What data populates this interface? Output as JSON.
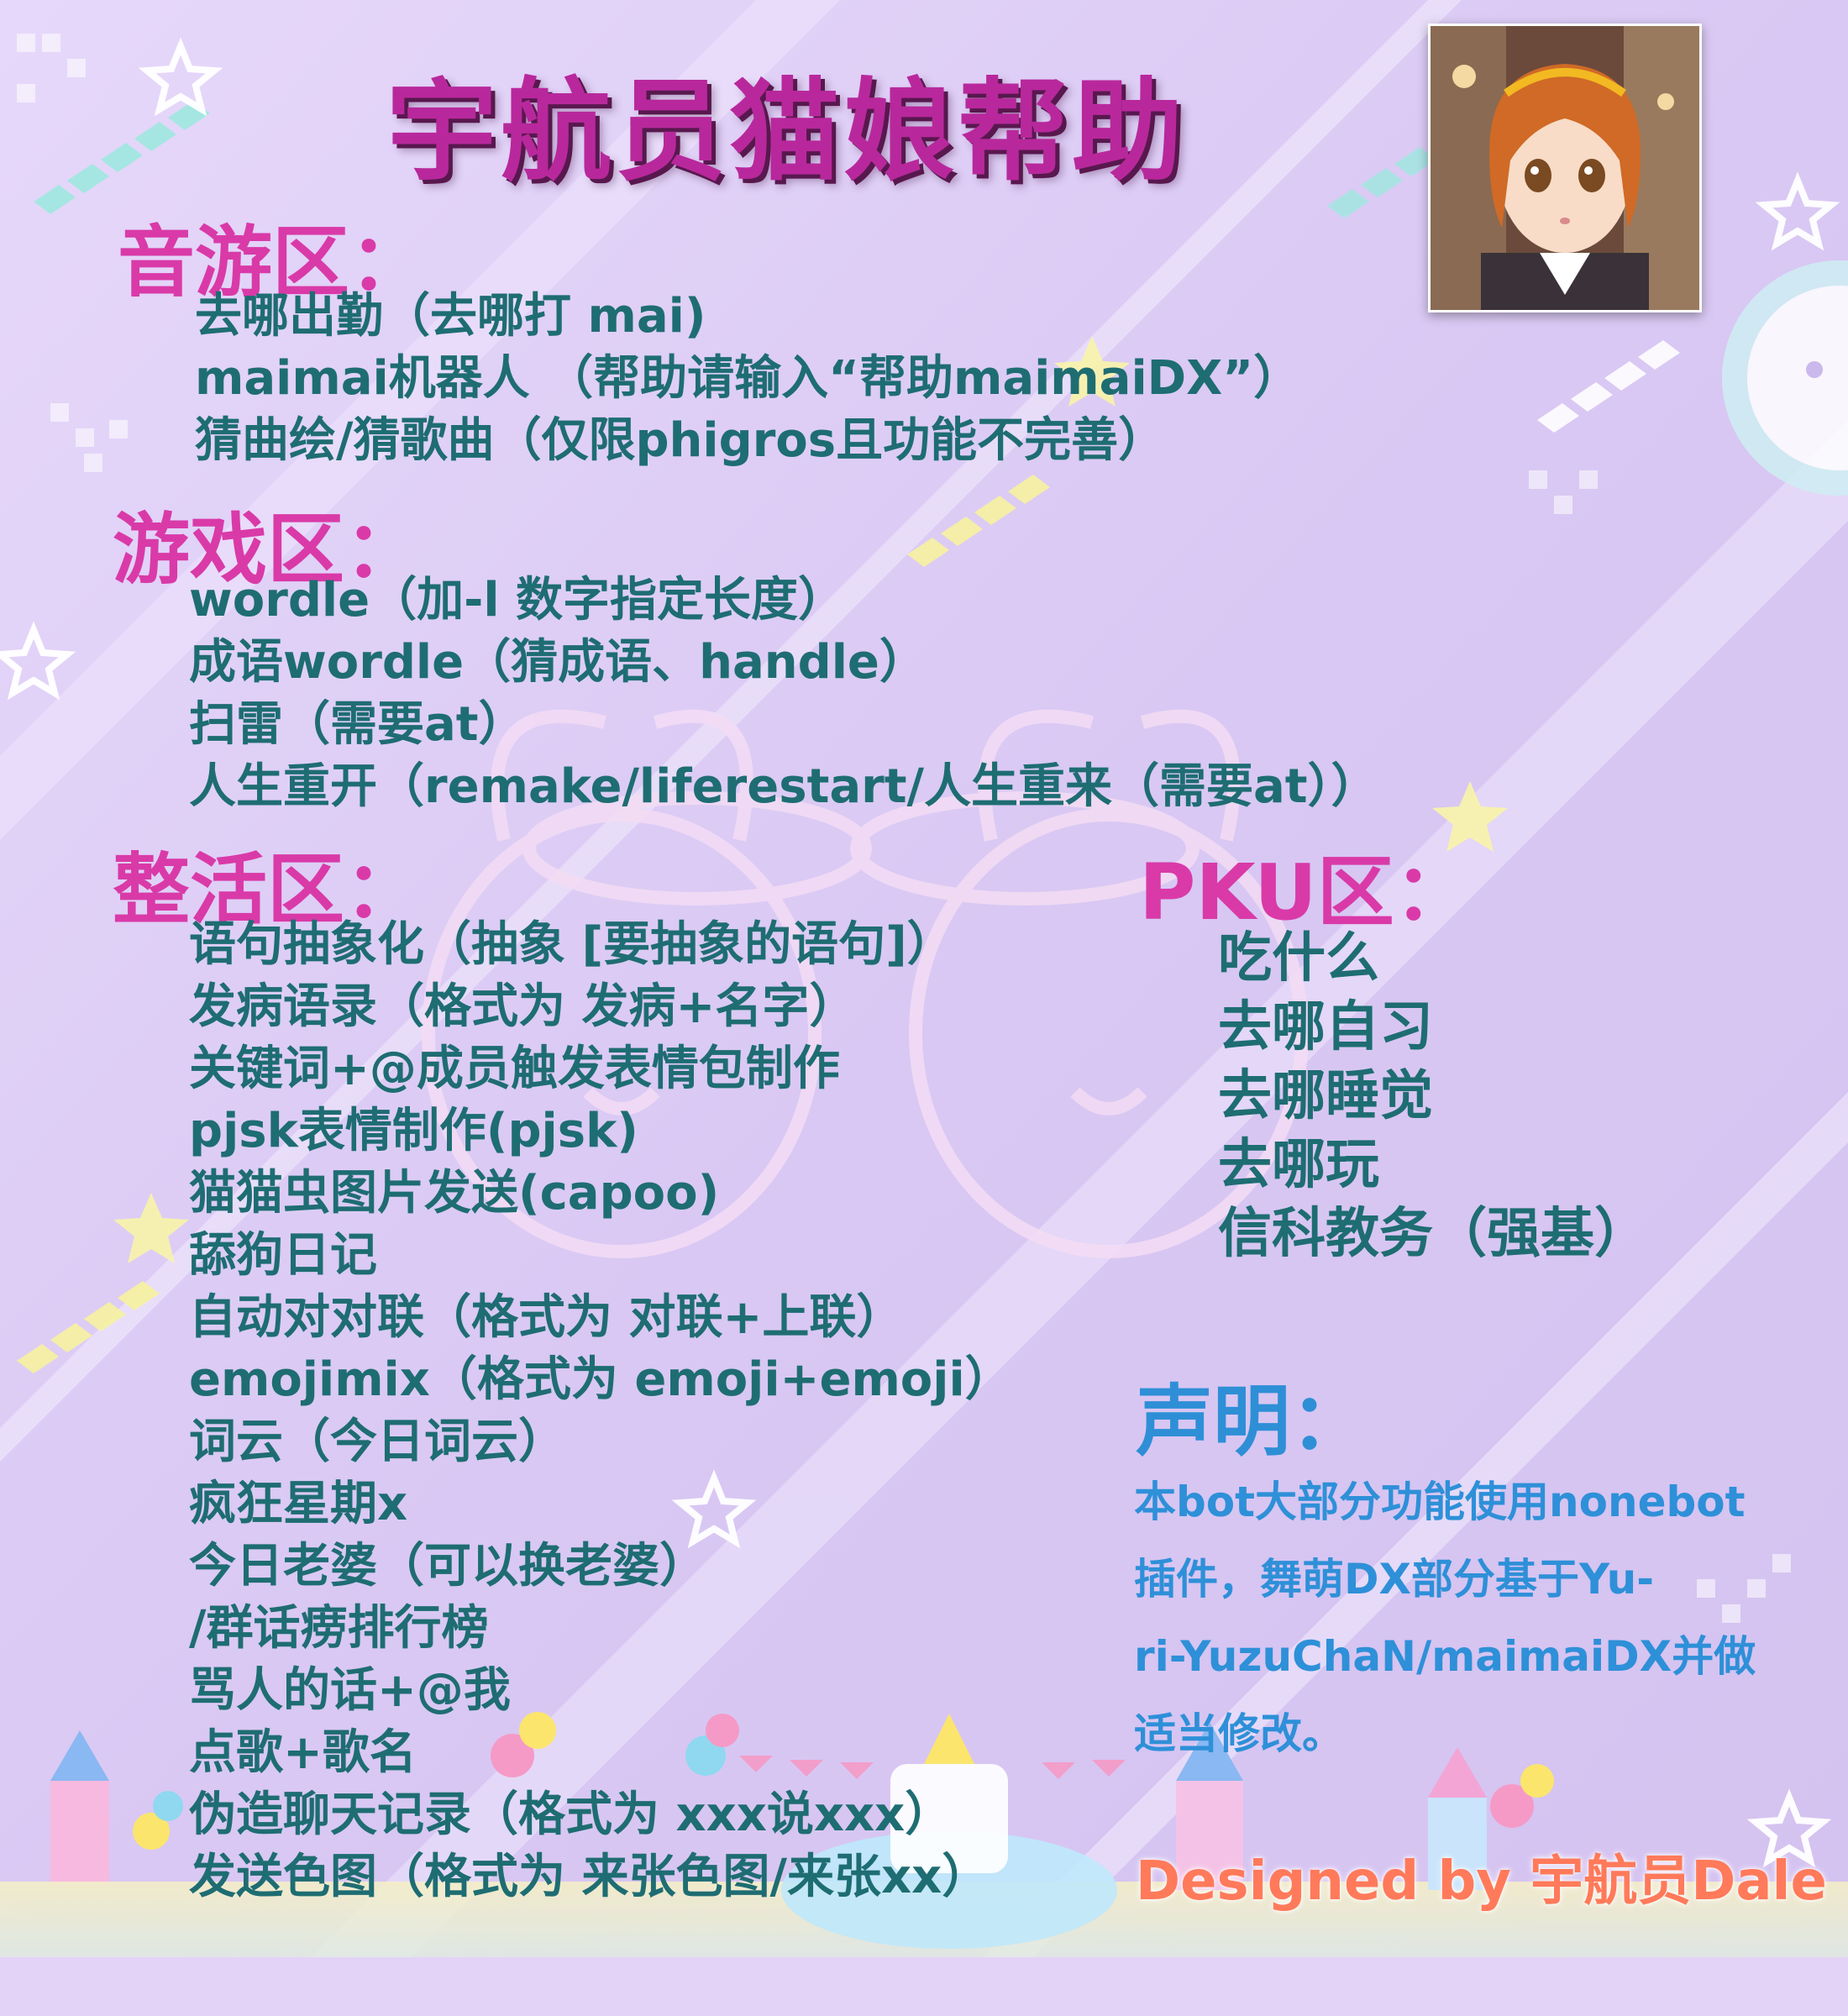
{
  "title": "宇航员猫娘帮助",
  "avatar_label": "avatar",
  "sections": {
    "music": {
      "heading": "音游区：",
      "items": [
        "去哪出勤（去哪打 mai)",
        "maimai机器人 （帮助请输入“帮助maimaiDX”）",
        "猜曲绘/猜歌曲（仅限phigros且功能不完善）"
      ]
    },
    "games": {
      "heading": "游戏区：",
      "items": [
        " wordle（加-l 数字指定长度）",
        "成语wordle（猜成语、handle）",
        "扫雷（需要at）",
        "人生重开（remake/liferestart/人生重来（需要at））"
      ]
    },
    "fun": {
      "heading": "整活区：",
      "items": [
        "语句抽象化（抽象 [要抽象的语句]）",
        "发病语录（格式为 发病+名字）",
        "关键词+@成员触发表情包制作",
        "pjsk表情制作(pjsk)",
        "猫猫虫图片发送(capoo)",
        "舔狗日记",
        "自动对对联（格式为 对联+上联）",
        "emojimix（格式为 emoji+emoji）",
        "词云（今日词云）",
        "疯狂星期x",
        "今日老婆（可以换老婆）",
        "/群话痨排行榜",
        "骂人的话+@我",
        "点歌+歌名",
        "伪造聊天记录（格式为 xxx说xxx）",
        "发送色图（格式为 来张色图/来张xx）"
      ]
    },
    "pku": {
      "heading": "PKU区：",
      "items": [
        "吃什么",
        "去哪自习",
        "去哪睡觉",
        "去哪玩",
        "信科教务（强基）"
      ]
    },
    "declaration": {
      "heading": "声明：",
      "lines": [
        "本bot大部分功能使用nonebot",
        "插件，舞萌DX部分基于Yu-",
        "ri-YuzuChaN/maimaiDX并做",
        "适当修改。"
      ]
    }
  },
  "credit": "Designed by 宇航员Dale",
  "colors": {
    "background": "#dcccf4",
    "title": "#b8289c",
    "section_heading": "#d93aa8",
    "item_text": "#1e6d72",
    "declaration": "#2e8fd6",
    "credit": "#ff7a5a"
  },
  "icons": [
    "star-icon",
    "chevron-stripe-icon",
    "bunny-watermark-icon",
    "castle-decoration-icon",
    "balloon-icon"
  ]
}
